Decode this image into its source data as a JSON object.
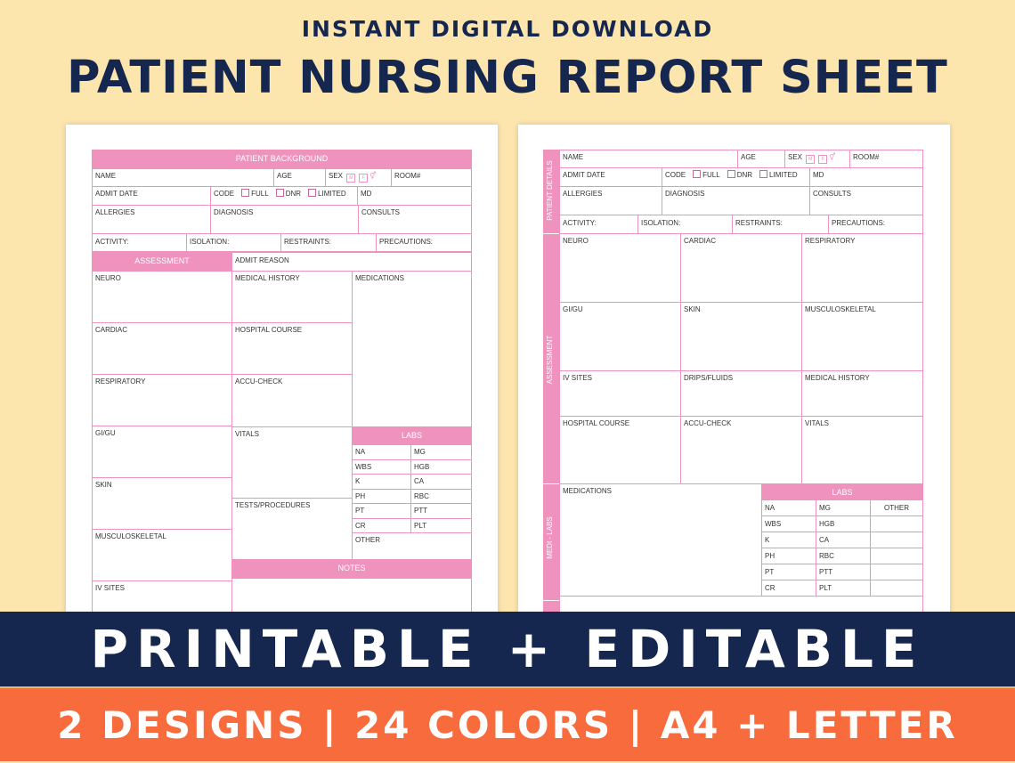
{
  "header": {
    "subtitle": "INSTANT DIGITAL DOWNLOAD",
    "title": "PATIENT NURSING REPORT SHEET"
  },
  "sheet1": {
    "patient_background": "PATIENT BACKGROUND",
    "name": "NAME",
    "age": "AGE",
    "sex": "SEX",
    "room": "ROOM#",
    "admit_date": "ADMIT DATE",
    "code": "CODE",
    "full": "FULL",
    "dnr": "DNR",
    "limited": "LIMITED",
    "md": "MD",
    "allergies": "ALLERGIES",
    "diagnosis": "DIAGNOSIS",
    "consults": "CONSULTS",
    "activity": "ACTIVITY:",
    "isolation": "ISOLATION:",
    "restraints": "RESTRAINTS:",
    "precautions": "PRECAUTIONS:",
    "assessment": "ASSESSMENT",
    "admit_reason": "ADMIT REASON",
    "neuro": "NEURO",
    "medical_history": "MEDICAL HISTORY",
    "medications": "MEDICATIONS",
    "cardiac": "CARDIAC",
    "hospital_course": "HOSPITAL COURSE",
    "respiratory": "RESPIRATORY",
    "accu_check": "ACCU-CHECK",
    "gigu": "GI/GU",
    "vitals": "VITALS",
    "labs": "LABS",
    "skin": "SKIN",
    "tests": "TESTS/PROCEDURES",
    "musculoskeletal": "MUSCULOSKELETAL",
    "other": "OTHER",
    "notes": "NOTES",
    "iv_sites": "IV SITES",
    "labs_rows": [
      [
        "NA",
        "MG"
      ],
      [
        "WBS",
        "HGB"
      ],
      [
        "K",
        "CA"
      ],
      [
        "PH",
        "RBC"
      ],
      [
        "PT",
        "PTT"
      ],
      [
        "CR",
        "PLT"
      ]
    ]
  },
  "sheet2": {
    "patient_details": "PATIENT DETAILS",
    "assessment": "ASSESSMENT",
    "medi_labs": "MEDI - LABS",
    "name": "NAME",
    "age": "AGE",
    "sex": "SEX",
    "room": "ROOM#",
    "admit_date": "ADMIT DATE",
    "code": "CODE",
    "full": "FULL",
    "dnr": "DNR",
    "limited": "LIMITED",
    "md": "MD",
    "allergies": "ALLERGIES",
    "diagnosis": "DIAGNOSIS",
    "consults": "CONSULTS",
    "activity": "ACTIVITY:",
    "isolation": "ISOLATION:",
    "restraints": "RESTRAINTS:",
    "precautions": "PRECAUTIONS:",
    "neuro": "NEURO",
    "cardiac": "CARDIAC",
    "respiratory": "RESPIRATORY",
    "gigu": "GI/GU",
    "skin": "SKIN",
    "musculoskeletal": "MUSCULOSKELETAL",
    "iv_sites": "IV SITES",
    "drips": "DRIPS/FLUIDS",
    "medical_history": "MEDICAL HISTORY",
    "hospital_course": "HOSPITAL COURSE",
    "accu_check": "ACCU-CHECK",
    "vitals": "VITALS",
    "medications": "MEDICATIONS",
    "labs": "LABS",
    "other": "OTHER",
    "labs_rows": [
      [
        "NA",
        "MG"
      ],
      [
        "WBS",
        "HGB"
      ],
      [
        "K",
        "CA"
      ],
      [
        "PH",
        "RBC"
      ],
      [
        "PT",
        "PTT"
      ],
      [
        "CR",
        "PLT"
      ]
    ]
  },
  "sex_options": [
    "M",
    "F"
  ],
  "banner1": "PRINTABLE + EDITABLE",
  "banner2": "2 DESIGNS | 24 COLORS | A4 + LETTER",
  "colors": {
    "navy": "#15264f",
    "pink": "#ef92bd",
    "orange": "#f76b3c",
    "cream": "#fde6ae"
  }
}
